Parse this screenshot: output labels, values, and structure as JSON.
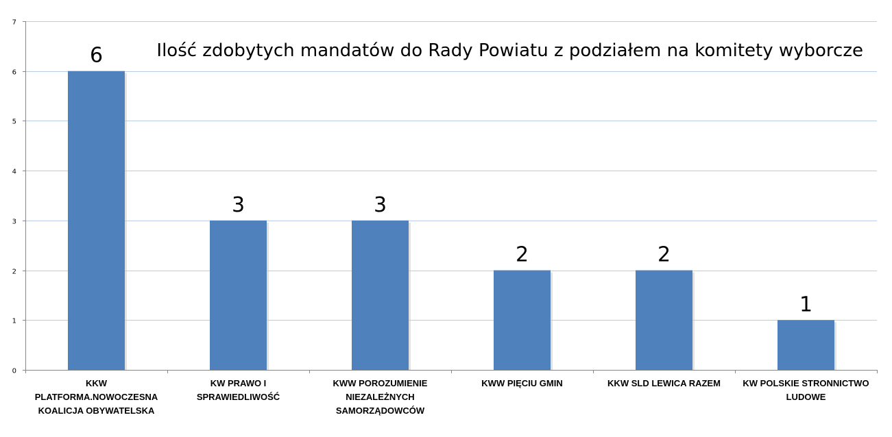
{
  "chart_data": {
    "type": "bar",
    "title": "Ilość zdobytych mandatów do Rady Powiatu z podziałem na komitety wyborcze",
    "categories": [
      "KKW PLATFORMA.NOWOCZESNA KOALICJA OBYWATELSKA",
      "KW PRAWO I SPRAWIEDLIWOŚĆ",
      "KWW POROZUMIENIE NIEZALEŻNYCH SAMORZĄDOWCÓW",
      "KWW PIĘCIU GMIN",
      "KKW SLD LEWICA RAZEM",
      "KW POLSKIE STRONNICTWO LUDOWE"
    ],
    "values": [
      6,
      3,
      3,
      2,
      2,
      1
    ],
    "ylim": [
      0,
      7
    ],
    "yticks": [
      0,
      1,
      2,
      3,
      4,
      5,
      6,
      7
    ],
    "grid": true,
    "bar_color": "#4F81BD",
    "grid_color": "#B9CDE5",
    "data_labels": true
  }
}
